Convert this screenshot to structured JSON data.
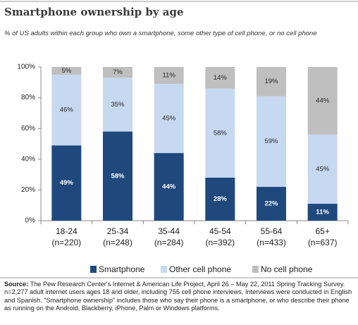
{
  "chart_data": {
    "type": "stacked_bar",
    "title": "Smartphone ownership by age",
    "subtitle": "% of US adults within each group who own a smartphone, some other type of cell phone, or no cell phone",
    "categories": [
      "18-24\n(n=220)",
      "25-34\n(n=248)",
      "35-44\n(n=284)",
      "45-54\n(n=392)",
      "55-64\n(n=433)",
      "65+\n(n=637)"
    ],
    "series": [
      {
        "name": "Smartphone",
        "color": "#1f497d",
        "label_color": "#ffffff",
        "values": [
          49,
          58,
          44,
          28,
          22,
          11
        ],
        "value_labels": [
          "49%",
          "58%",
          "44%",
          "28%",
          "22%",
          "11%"
        ]
      },
      {
        "name": "Other cell phone",
        "color": "#c6d9f1",
        "label_color": "#262626",
        "values": [
          46,
          35,
          45,
          58,
          59,
          45
        ],
        "value_labels": [
          "46%",
          "35%",
          "45%",
          "58%",
          "59%",
          "45%"
        ]
      },
      {
        "name": "No cell phone",
        "color": "#bfbfbf",
        "label_color": "#262626",
        "values": [
          5,
          7,
          11,
          14,
          19,
          44
        ],
        "value_labels": [
          "5%",
          "7%",
          "11%",
          "14%",
          "19%",
          "44%"
        ]
      }
    ],
    "ylim": [
      0,
      100
    ],
    "yticks": [
      {
        "value": 0,
        "label": "0%"
      },
      {
        "value": 20,
        "label": "20%"
      },
      {
        "value": 40,
        "label": "40%"
      },
      {
        "value": 60,
        "label": "60%"
      },
      {
        "value": 80,
        "label": "80%"
      },
      {
        "value": 100,
        "label": "100%"
      }
    ],
    "grid": false,
    "legend": "bottom",
    "source_label": "Source:",
    "source": "The Pew Research Center's Internet & American Life Project, April 26 – May 22, 2011 Spring Tracking Survey. n=2,277 adult internet users ages 18 and older, including 755 cell phone interviews. Interviews were conducted in English and Spanish. \"Smartphone ownership\" includes those who say their phone is a smartphone, or who describe their phone as running on the Android, Blackberry, iPhone, Palm or Windows platforms."
  }
}
